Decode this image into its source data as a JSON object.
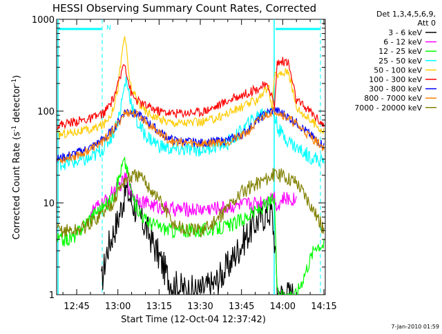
{
  "chart_data": {
    "type": "line",
    "title": "HESSI Observing Summary Count Rates, Corrected",
    "xlabel": "Start Time (12-Oct-04 12:37:42)",
    "ylabel_main": "Corrected Count Rate (s",
    "ylabel_sup1": "-1",
    "ylabel_mid": " detector",
    "ylabel_sup2": "-1",
    "ylabel_end": ")",
    "x_unit": "minutes after 12:00 UT",
    "xlim": [
      37.7,
      135.5
    ],
    "ylim": [
      1,
      1000
    ],
    "yscale": "log",
    "grid": false,
    "legend_position": "right",
    "x_ticks": [
      {
        "value": 45,
        "label": "12:45"
      },
      {
        "value": 60,
        "label": "13:00"
      },
      {
        "value": 75,
        "label": "13:15"
      },
      {
        "value": 90,
        "label": "13:30"
      },
      {
        "value": 105,
        "label": "13:45"
      },
      {
        "value": 120,
        "label": "14:00"
      },
      {
        "value": 135,
        "label": "14:15"
      }
    ],
    "y_ticks": [
      {
        "value": 1,
        "label": "1"
      },
      {
        "value": 10,
        "label": "10"
      },
      {
        "value": 100,
        "label": "100"
      },
      {
        "value": 1000,
        "label": "1000"
      }
    ],
    "legend_header": [
      "Det 1,3,4,5,6,9,",
      "Att 0"
    ],
    "series": [
      {
        "name": "3 - 6 keV",
        "color": "#000000",
        "x": [
          54,
          55,
          56,
          58,
          60,
          61,
          62,
          63,
          64,
          66,
          68,
          70,
          72,
          74,
          76,
          78,
          80,
          85,
          90,
          95,
          100,
          104,
          108,
          110,
          112,
          114,
          116,
          117,
          118,
          119,
          120,
          122,
          124
        ],
        "y": [
          1.3,
          2.0,
          3.0,
          4.5,
          6.5,
          8.5,
          11,
          14,
          12,
          9,
          7,
          5.5,
          4.2,
          3,
          2.2,
          1.6,
          1.3,
          1.1,
          1.1,
          1.3,
          2.0,
          3.2,
          5.0,
          6.0,
          7.0,
          7.5,
          8.0,
          4,
          1.2,
          1.0,
          1.0,
          1.0,
          1.0
        ]
      },
      {
        "name": "6 - 12 keV",
        "color": "#ff00ff",
        "x": [
          50,
          55,
          58,
          60,
          62,
          63,
          64,
          66,
          70,
          75,
          80,
          90,
          100,
          105,
          110,
          115,
          117,
          118,
          120,
          125
        ],
        "y": [
          8,
          10,
          13,
          15,
          17,
          19,
          15,
          12,
          10,
          9,
          8.5,
          8.5,
          9,
          9.5,
          10,
          11,
          12,
          9,
          11,
          11
        ]
      },
      {
        "name": "12 - 25 keV",
        "color": "#00ff00",
        "x": [
          38,
          42,
          45,
          48,
          52,
          55,
          58,
          60,
          62,
          63,
          64,
          66,
          70,
          75,
          80,
          90,
          100,
          105,
          110,
          115,
          117,
          118,
          119,
          120,
          122,
          125,
          132,
          135
        ],
        "y": [
          4,
          4,
          4.5,
          6,
          8,
          9,
          11,
          17,
          28,
          26,
          18,
          10,
          6.5,
          5.5,
          5,
          5,
          5.5,
          6.5,
          8,
          10,
          11,
          1.0,
          1.0,
          1.0,
          1.0,
          1.0,
          3.5,
          3.5
        ]
      },
      {
        "name": "25 - 50 keV",
        "color": "#00ffff",
        "x": [
          38,
          45,
          50,
          55,
          58,
          60,
          61,
          62,
          63,
          65,
          67,
          70,
          75,
          80,
          90,
          100,
          105,
          108,
          112,
          115,
          116,
          117,
          118,
          119,
          120,
          125,
          130,
          135
        ],
        "y": [
          27,
          28,
          30,
          40,
          55,
          80,
          110,
          160,
          220,
          120,
          75,
          55,
          42,
          38,
          38,
          45,
          60,
          75,
          95,
          105,
          100,
          90,
          70,
          60,
          55,
          40,
          32,
          28
        ]
      },
      {
        "name": "50 - 100 keV",
        "color": "#ffcc00",
        "x": [
          38,
          45,
          50,
          55,
          58,
          60,
          61,
          62,
          62.5,
          63,
          64,
          65,
          67,
          70,
          75,
          80,
          90,
          95,
          100,
          105,
          110,
          113,
          115,
          116,
          117,
          118,
          119,
          120,
          122,
          125,
          130,
          135
        ],
        "y": [
          55,
          60,
          62,
          72,
          100,
          180,
          320,
          560,
          680,
          500,
          250,
          170,
          130,
          100,
          82,
          75,
          75,
          82,
          95,
          110,
          130,
          160,
          180,
          100,
          240,
          250,
          250,
          260,
          280,
          110,
          80,
          60
        ]
      },
      {
        "name": "100 - 300 keV",
        "color": "#ff0000",
        "x": [
          38,
          45,
          50,
          55,
          58,
          60,
          61,
          62,
          62.5,
          63,
          64,
          65,
          67,
          70,
          75,
          80,
          90,
          95,
          100,
          105,
          110,
          113,
          115,
          116,
          117,
          118,
          119,
          120,
          122,
          125,
          130,
          135
        ],
        "y": [
          70,
          78,
          82,
          95,
          130,
          190,
          240,
          330,
          350,
          280,
          200,
          150,
          130,
          115,
          100,
          95,
          98,
          110,
          130,
          150,
          170,
          190,
          180,
          150,
          110,
          340,
          340,
          350,
          340,
          130,
          100,
          70
        ]
      },
      {
        "name": "300 - 800 keV",
        "color": "#0000ff",
        "x": [
          38,
          45,
          50,
          55,
          58,
          60,
          61,
          62,
          63,
          64,
          65,
          67,
          70,
          75,
          80,
          90,
          100,
          105,
          108,
          110,
          112,
          114,
          116,
          117,
          118,
          120,
          125,
          130,
          135
        ],
        "y": [
          30,
          35,
          40,
          50,
          62,
          75,
          85,
          95,
          100,
          100,
          98,
          92,
          80,
          60,
          48,
          45,
          48,
          55,
          65,
          75,
          85,
          95,
          100,
          105,
          100,
          95,
          75,
          55,
          42
        ]
      },
      {
        "name": "800 - 7000 keV",
        "color": "#ff8000",
        "x": [
          38,
          45,
          50,
          55,
          58,
          60,
          62,
          64,
          65,
          67,
          70,
          75,
          80,
          90,
          100,
          105,
          108,
          110,
          112,
          114,
          116,
          117,
          118,
          120,
          125,
          130,
          135
        ],
        "y": [
          29,
          33,
          38,
          48,
          60,
          72,
          92,
          97,
          96,
          90,
          78,
          58,
          46,
          44,
          47,
          53,
          62,
          72,
          82,
          92,
          98,
          102,
          100,
          92,
          72,
          53,
          40
        ]
      },
      {
        "name": "7000 - 20000 keV",
        "color": "#808000",
        "x": [
          38,
          45,
          48,
          50,
          55,
          58,
          60,
          62,
          63,
          65,
          67,
          70,
          72,
          75,
          80,
          85,
          90,
          95,
          100,
          105,
          110,
          115,
          116,
          117,
          118,
          119,
          120,
          125,
          130,
          135
        ],
        "y": [
          5,
          5,
          5.5,
          6,
          8,
          10,
          13,
          17,
          18,
          19,
          20,
          17,
          14,
          11,
          6,
          5,
          5,
          6,
          9,
          13,
          16,
          19,
          20,
          20,
          20,
          20,
          20,
          17,
          10,
          5
        ]
      }
    ]
  }
}
